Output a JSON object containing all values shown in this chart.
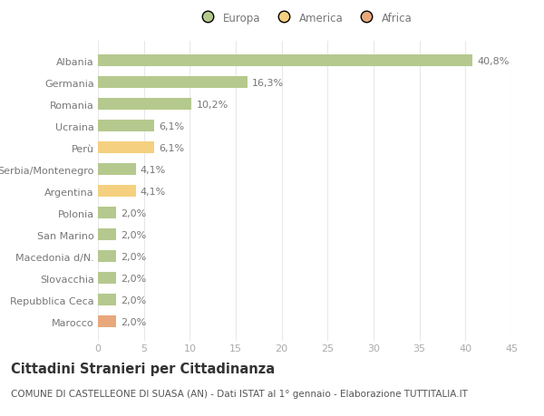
{
  "categories": [
    "Albania",
    "Germania",
    "Romania",
    "Ucraina",
    "Perù",
    "Serbia/Montenegro",
    "Argentina",
    "Polonia",
    "San Marino",
    "Macedonia d/N.",
    "Slovacchia",
    "Repubblica Ceca",
    "Marocco"
  ],
  "values": [
    40.8,
    16.3,
    10.2,
    6.1,
    6.1,
    4.1,
    4.1,
    2.0,
    2.0,
    2.0,
    2.0,
    2.0,
    2.0
  ],
  "labels": [
    "40,8%",
    "16,3%",
    "10,2%",
    "6,1%",
    "6,1%",
    "4,1%",
    "4,1%",
    "2,0%",
    "2,0%",
    "2,0%",
    "2,0%",
    "2,0%",
    "2,0%"
  ],
  "colors": [
    "#b5c98e",
    "#b5c98e",
    "#b5c98e",
    "#b5c98e",
    "#f5d080",
    "#b5c98e",
    "#f5d080",
    "#b5c98e",
    "#b5c98e",
    "#b5c98e",
    "#b5c98e",
    "#b5c98e",
    "#e8a87c"
  ],
  "legend_labels": [
    "Europa",
    "America",
    "Africa"
  ],
  "legend_colors": [
    "#b5c98e",
    "#f5d080",
    "#e8a87c"
  ],
  "title": "Cittadini Stranieri per Cittadinanza",
  "subtitle": "COMUNE DI CASTELLEONE DI SUASA (AN) - Dati ISTAT al 1° gennaio - Elaborazione TUTTITALIA.IT",
  "xlim": [
    0,
    45
  ],
  "xticks": [
    0,
    5,
    10,
    15,
    20,
    25,
    30,
    35,
    40,
    45
  ],
  "bg_color": "#ffffff",
  "grid_color": "#e8e8e8",
  "bar_height": 0.55,
  "title_fontsize": 10.5,
  "subtitle_fontsize": 7.5,
  "label_fontsize": 8,
  "tick_fontsize": 8,
  "legend_fontsize": 8.5
}
